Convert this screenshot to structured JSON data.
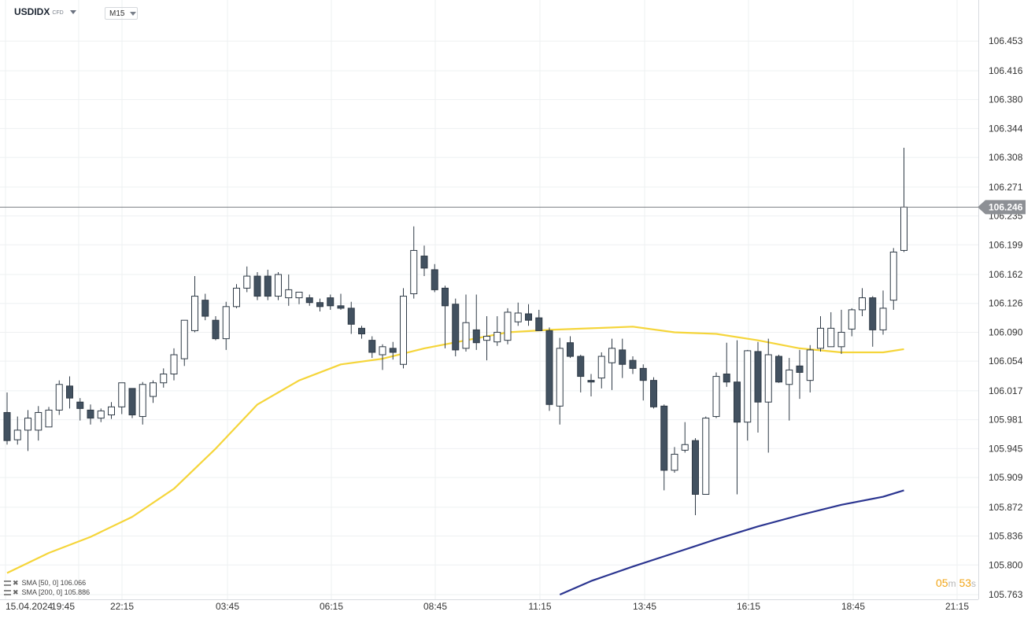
{
  "header": {
    "symbol": "USDIDX",
    "type": "CFD",
    "timeframe": "M15"
  },
  "indicators": [
    {
      "label": "SMA [50, 0] 106.066",
      "color": "#f5d53a"
    },
    {
      "label": "SMA [200, 0] 105.886",
      "color": "#2b3590"
    }
  ],
  "timer": {
    "minutes": "05",
    "m_unit": "m",
    "seconds": "53",
    "s_unit": "s"
  },
  "colors": {
    "up": "#ffffff",
    "down": "#425160",
    "wick": "#2f3a46",
    "grid": "#eef0f2",
    "price_line": "#7b7f84",
    "price_tag": "#8d9095"
  },
  "chart_data": {
    "type": "candlestick",
    "title": "",
    "current_price": 106.246,
    "ylim": [
      105.763,
      106.47
    ],
    "y_ticks": [
      106.453,
      106.416,
      106.38,
      106.344,
      106.308,
      106.271,
      106.235,
      106.199,
      106.162,
      106.126,
      106.09,
      106.054,
      106.017,
      105.981,
      105.945,
      105.909,
      105.872,
      105.836,
      105.8,
      105.763
    ],
    "x_ticks": [
      "15.04.2024",
      "19:45",
      "22:15",
      "03:45",
      "06:15",
      "08:45",
      "11:15",
      "13:45",
      "16:15",
      "18:45",
      "21:15"
    ],
    "candles": [
      {
        "o": 105.99,
        "h": 106.015,
        "l": 105.95,
        "c": 105.955
      },
      {
        "o": 105.956,
        "h": 105.985,
        "l": 105.95,
        "c": 105.968
      },
      {
        "o": 105.968,
        "h": 105.993,
        "l": 105.942,
        "c": 105.983
      },
      {
        "o": 105.968,
        "h": 105.998,
        "l": 105.955,
        "c": 105.99
      },
      {
        "o": 105.972,
        "h": 105.997,
        "l": 105.972,
        "c": 105.993
      },
      {
        "o": 105.993,
        "h": 106.03,
        "l": 105.987,
        "c": 106.025
      },
      {
        "o": 106.023,
        "h": 106.035,
        "l": 105.995,
        "c": 106.008
      },
      {
        "o": 106.003,
        "h": 106.008,
        "l": 105.98,
        "c": 105.995
      },
      {
        "o": 105.993,
        "h": 106.0,
        "l": 105.975,
        "c": 105.983
      },
      {
        "o": 105.983,
        "h": 105.995,
        "l": 105.978,
        "c": 105.992
      },
      {
        "o": 105.987,
        "h": 106.003,
        "l": 105.982,
        "c": 105.997
      },
      {
        "o": 105.997,
        "h": 106.027,
        "l": 105.988,
        "c": 106.027
      },
      {
        "o": 106.02,
        "h": 106.02,
        "l": 105.983,
        "c": 105.987
      },
      {
        "o": 105.985,
        "h": 106.028,
        "l": 105.975,
        "c": 106.025
      },
      {
        "o": 106.01,
        "h": 106.03,
        "l": 106.002,
        "c": 106.027
      },
      {
        "o": 106.027,
        "h": 106.045,
        "l": 106.021,
        "c": 106.038
      },
      {
        "o": 106.038,
        "h": 106.07,
        "l": 106.03,
        "c": 106.062
      },
      {
        "o": 106.057,
        "h": 106.105,
        "l": 106.048,
        "c": 106.105
      },
      {
        "o": 106.092,
        "h": 106.16,
        "l": 106.09,
        "c": 106.135
      },
      {
        "o": 106.13,
        "h": 106.138,
        "l": 106.105,
        "c": 106.11
      },
      {
        "o": 106.105,
        "h": 106.11,
        "l": 106.08,
        "c": 106.082
      },
      {
        "o": 106.082,
        "h": 106.128,
        "l": 106.068,
        "c": 106.122
      },
      {
        "o": 106.122,
        "h": 106.15,
        "l": 106.12,
        "c": 106.145
      },
      {
        "o": 106.145,
        "h": 106.172,
        "l": 106.14,
        "c": 106.16
      },
      {
        "o": 106.16,
        "h": 106.165,
        "l": 106.13,
        "c": 106.135
      },
      {
        "o": 106.16,
        "h": 106.168,
        "l": 106.13,
        "c": 106.135
      },
      {
        "o": 106.135,
        "h": 106.165,
        "l": 106.13,
        "c": 106.162
      },
      {
        "o": 106.133,
        "h": 106.162,
        "l": 106.123,
        "c": 106.143
      },
      {
        "o": 106.133,
        "h": 106.14,
        "l": 106.125,
        "c": 106.14
      },
      {
        "o": 106.133,
        "h": 106.137,
        "l": 106.123,
        "c": 106.127
      },
      {
        "o": 106.127,
        "h": 106.132,
        "l": 106.116,
        "c": 106.122
      },
      {
        "o": 106.133,
        "h": 106.137,
        "l": 106.118,
        "c": 106.123
      },
      {
        "o": 106.123,
        "h": 106.138,
        "l": 106.118,
        "c": 106.12
      },
      {
        "o": 106.12,
        "h": 106.128,
        "l": 106.088,
        "c": 106.1
      },
      {
        "o": 106.095,
        "h": 106.098,
        "l": 106.082,
        "c": 106.088
      },
      {
        "o": 106.08,
        "h": 106.085,
        "l": 106.058,
        "c": 106.065
      },
      {
        "o": 106.062,
        "h": 106.075,
        "l": 106.043,
        "c": 106.072
      },
      {
        "o": 106.07,
        "h": 106.078,
        "l": 106.056,
        "c": 106.065
      },
      {
        "o": 106.05,
        "h": 106.145,
        "l": 106.045,
        "c": 106.135
      },
      {
        "o": 106.138,
        "h": 106.222,
        "l": 106.132,
        "c": 106.192
      },
      {
        "o": 106.185,
        "h": 106.198,
        "l": 106.16,
        "c": 106.17
      },
      {
        "o": 106.168,
        "h": 106.175,
        "l": 106.14,
        "c": 106.143
      },
      {
        "o": 106.145,
        "h": 106.148,
        "l": 106.07,
        "c": 106.123
      },
      {
        "o": 106.125,
        "h": 106.132,
        "l": 106.06,
        "c": 106.068
      },
      {
        "o": 106.07,
        "h": 106.137,
        "l": 106.066,
        "c": 106.102
      },
      {
        "o": 106.093,
        "h": 106.137,
        "l": 106.068,
        "c": 106.077
      },
      {
        "o": 106.08,
        "h": 106.11,
        "l": 106.055,
        "c": 106.085
      },
      {
        "o": 106.078,
        "h": 106.11,
        "l": 106.073,
        "c": 106.09
      },
      {
        "o": 106.08,
        "h": 106.12,
        "l": 106.075,
        "c": 106.115
      },
      {
        "o": 106.103,
        "h": 106.127,
        "l": 106.098,
        "c": 106.114
      },
      {
        "o": 106.113,
        "h": 106.125,
        "l": 106.098,
        "c": 106.105
      },
      {
        "o": 106.108,
        "h": 106.118,
        "l": 106.095,
        "c": 106.092
      },
      {
        "o": 106.092,
        "h": 106.096,
        "l": 105.992,
        "c": 106.0
      },
      {
        "o": 105.998,
        "h": 106.083,
        "l": 105.975,
        "c": 106.07
      },
      {
        "o": 106.077,
        "h": 106.085,
        "l": 106.058,
        "c": 106.06
      },
      {
        "o": 106.06,
        "h": 106.062,
        "l": 106.015,
        "c": 106.035
      },
      {
        "o": 106.03,
        "h": 106.038,
        "l": 106.01,
        "c": 106.028
      },
      {
        "o": 106.033,
        "h": 106.065,
        "l": 106.02,
        "c": 106.06
      },
      {
        "o": 106.052,
        "h": 106.082,
        "l": 106.018,
        "c": 106.07
      },
      {
        "o": 106.068,
        "h": 106.082,
        "l": 106.033,
        "c": 106.05
      },
      {
        "o": 106.055,
        "h": 106.06,
        "l": 106.038,
        "c": 106.045
      },
      {
        "o": 106.045,
        "h": 106.05,
        "l": 106.005,
        "c": 106.03
      },
      {
        "o": 106.03,
        "h": 106.034,
        "l": 105.995,
        "c": 105.997
      },
      {
        "o": 105.998,
        "h": 106.0,
        "l": 105.893,
        "c": 105.918
      },
      {
        "o": 105.918,
        "h": 105.947,
        "l": 105.915,
        "c": 105.938
      },
      {
        "o": 105.943,
        "h": 105.978,
        "l": 105.94,
        "c": 105.95
      },
      {
        "o": 105.955,
        "h": 105.958,
        "l": 105.862,
        "c": 105.888
      },
      {
        "o": 105.888,
        "h": 105.985,
        "l": 105.888,
        "c": 105.983
      },
      {
        "o": 105.985,
        "h": 106.04,
        "l": 105.983,
        "c": 106.035
      },
      {
        "o": 106.038,
        "h": 106.077,
        "l": 106.022,
        "c": 106.028
      },
      {
        "o": 106.028,
        "h": 106.08,
        "l": 105.888,
        "c": 105.978
      },
      {
        "o": 105.978,
        "h": 106.068,
        "l": 105.955,
        "c": 106.067
      },
      {
        "o": 106.066,
        "h": 106.078,
        "l": 105.965,
        "c": 106.003
      },
      {
        "o": 106.003,
        "h": 106.082,
        "l": 105.94,
        "c": 106.062
      },
      {
        "o": 106.06,
        "h": 106.062,
        "l": 106.027,
        "c": 106.028
      },
      {
        "o": 106.025,
        "h": 106.058,
        "l": 105.98,
        "c": 106.043
      },
      {
        "o": 106.048,
        "h": 106.068,
        "l": 106.007,
        "c": 106.04
      },
      {
        "o": 106.03,
        "h": 106.074,
        "l": 106.015,
        "c": 106.068
      },
      {
        "o": 106.07,
        "h": 106.11,
        "l": 106.066,
        "c": 106.095
      },
      {
        "o": 106.072,
        "h": 106.115,
        "l": 106.072,
        "c": 106.095
      },
      {
        "o": 106.072,
        "h": 106.118,
        "l": 106.063,
        "c": 106.09
      },
      {
        "o": 106.094,
        "h": 106.12,
        "l": 106.085,
        "c": 106.118
      },
      {
        "o": 106.118,
        "h": 106.145,
        "l": 106.11,
        "c": 106.133
      },
      {
        "o": 106.133,
        "h": 106.135,
        "l": 106.072,
        "c": 106.093
      },
      {
        "o": 106.093,
        "h": 106.142,
        "l": 106.087,
        "c": 106.12
      },
      {
        "o": 106.13,
        "h": 106.195,
        "l": 106.118,
        "c": 106.19
      },
      {
        "o": 106.192,
        "h": 106.32,
        "l": 106.19,
        "c": 106.246
      }
    ],
    "series": [
      {
        "name": "SMA [50, 0] 106.066",
        "color": "#f5d53a",
        "line": [
          [
            0,
            105.79
          ],
          [
            4,
            105.815
          ],
          [
            8,
            105.835
          ],
          [
            12,
            105.86
          ],
          [
            16,
            105.895
          ],
          [
            20,
            105.945
          ],
          [
            24,
            106.0
          ],
          [
            28,
            106.03
          ],
          [
            32,
            106.05
          ],
          [
            36,
            106.057
          ],
          [
            40,
            106.07
          ],
          [
            44,
            106.08
          ],
          [
            48,
            106.09
          ],
          [
            52,
            106.093
          ],
          [
            56,
            106.095
          ],
          [
            60,
            106.097
          ],
          [
            64,
            106.09
          ],
          [
            68,
            106.088
          ],
          [
            72,
            106.08
          ],
          [
            76,
            106.07
          ],
          [
            80,
            106.065
          ],
          [
            84,
            106.065
          ],
          [
            86,
            106.069
          ]
        ]
      },
      {
        "name": "SMA [200, 0] 105.886",
        "color": "#2b3590",
        "line": [
          [
            53,
            105.763
          ],
          [
            56,
            105.78
          ],
          [
            60,
            105.798
          ],
          [
            64,
            105.815
          ],
          [
            68,
            105.832
          ],
          [
            72,
            105.848
          ],
          [
            76,
            105.862
          ],
          [
            80,
            105.875
          ],
          [
            84,
            105.885
          ],
          [
            86,
            105.893
          ]
        ]
      }
    ]
  }
}
